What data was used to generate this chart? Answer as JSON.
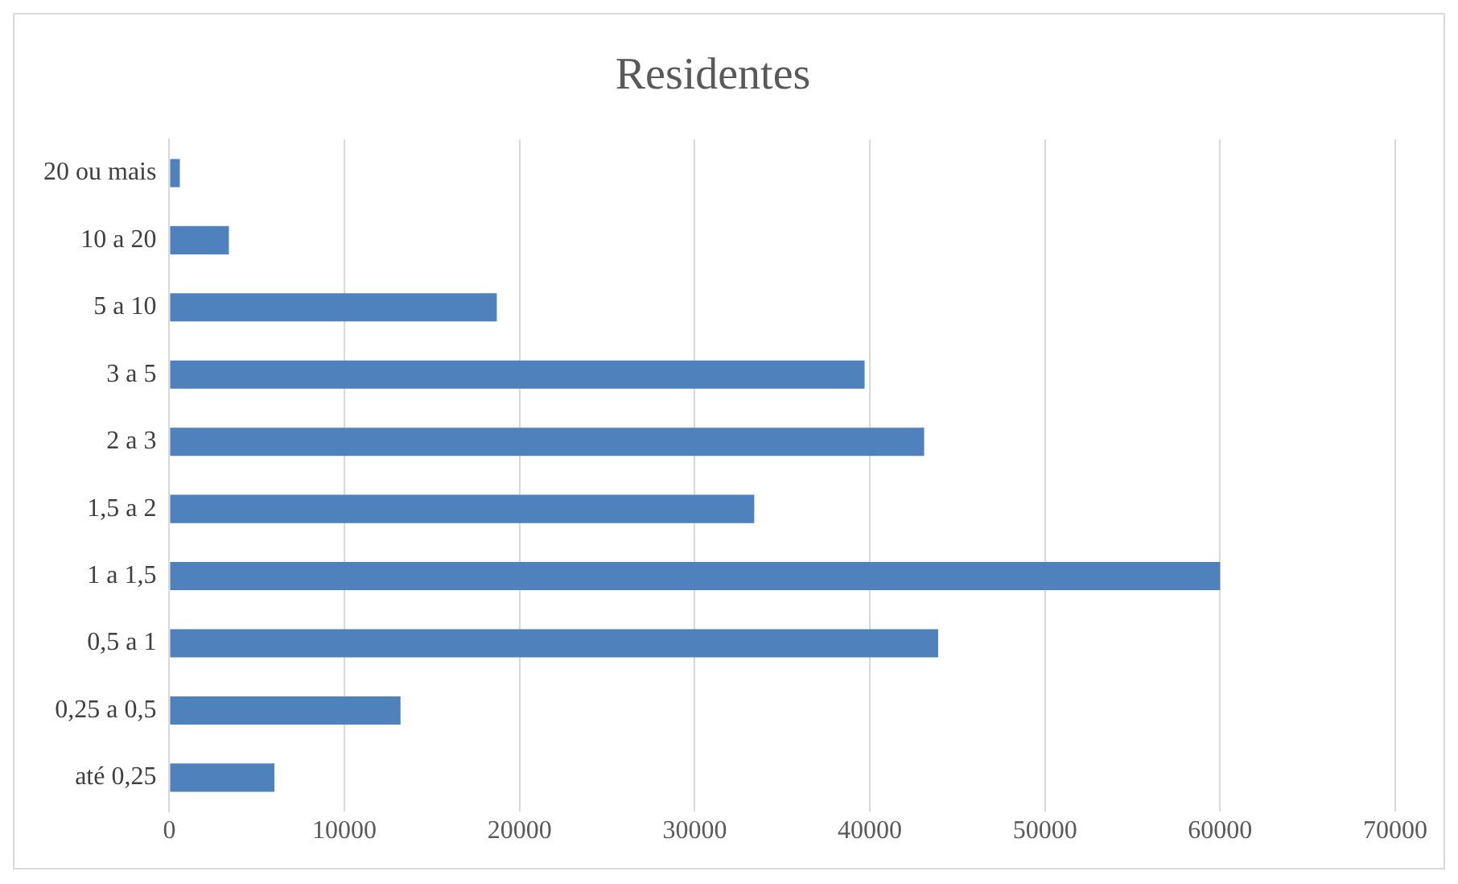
{
  "chart_data": {
    "type": "bar",
    "orientation": "horizontal",
    "title": "Residentes",
    "categories": [
      "20 ou mais",
      "10 a 20",
      "5 a 10",
      "3 a 5",
      "2 a 3",
      "1,5 a 2",
      "1 a 1,5",
      "0,5 a 1",
      "0,25 a 0,5",
      "até 0,25"
    ],
    "values": [
      600,
      3400,
      18700,
      39700,
      43100,
      33400,
      60000,
      43900,
      13200,
      6000
    ],
    "color": "#4f81bd",
    "xlim": [
      0,
      70000
    ],
    "xticks": [
      0,
      10000,
      20000,
      30000,
      40000,
      50000,
      60000,
      70000
    ],
    "grid": "x",
    "legend": false
  }
}
